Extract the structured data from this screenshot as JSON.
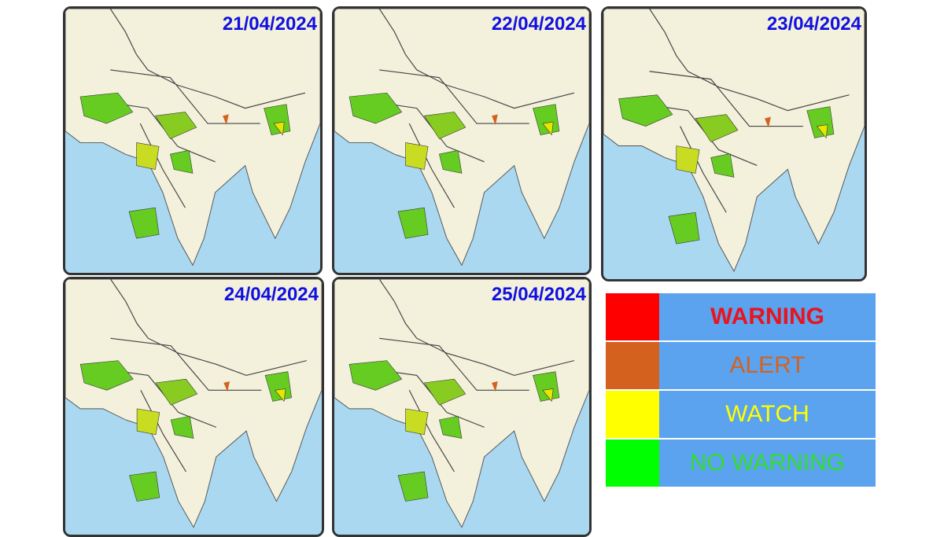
{
  "panels": [
    {
      "date": "21/04/2024"
    },
    {
      "date": "22/04/2024"
    },
    {
      "date": "23/04/2024"
    },
    {
      "date": "24/04/2024"
    },
    {
      "date": "25/04/2024"
    }
  ],
  "legend": [
    {
      "label": "WARNING",
      "color": "#ff0000",
      "text_color": "#e8141e"
    },
    {
      "label": "ALERT",
      "color": "#d4621e",
      "text_color": "#d4621e"
    },
    {
      "label": "WATCH",
      "color": "#ffff00",
      "text_color": "#ffff00"
    },
    {
      "label": "NO WARNING",
      "color": "#00ff00",
      "text_color": "#33dd33"
    }
  ]
}
